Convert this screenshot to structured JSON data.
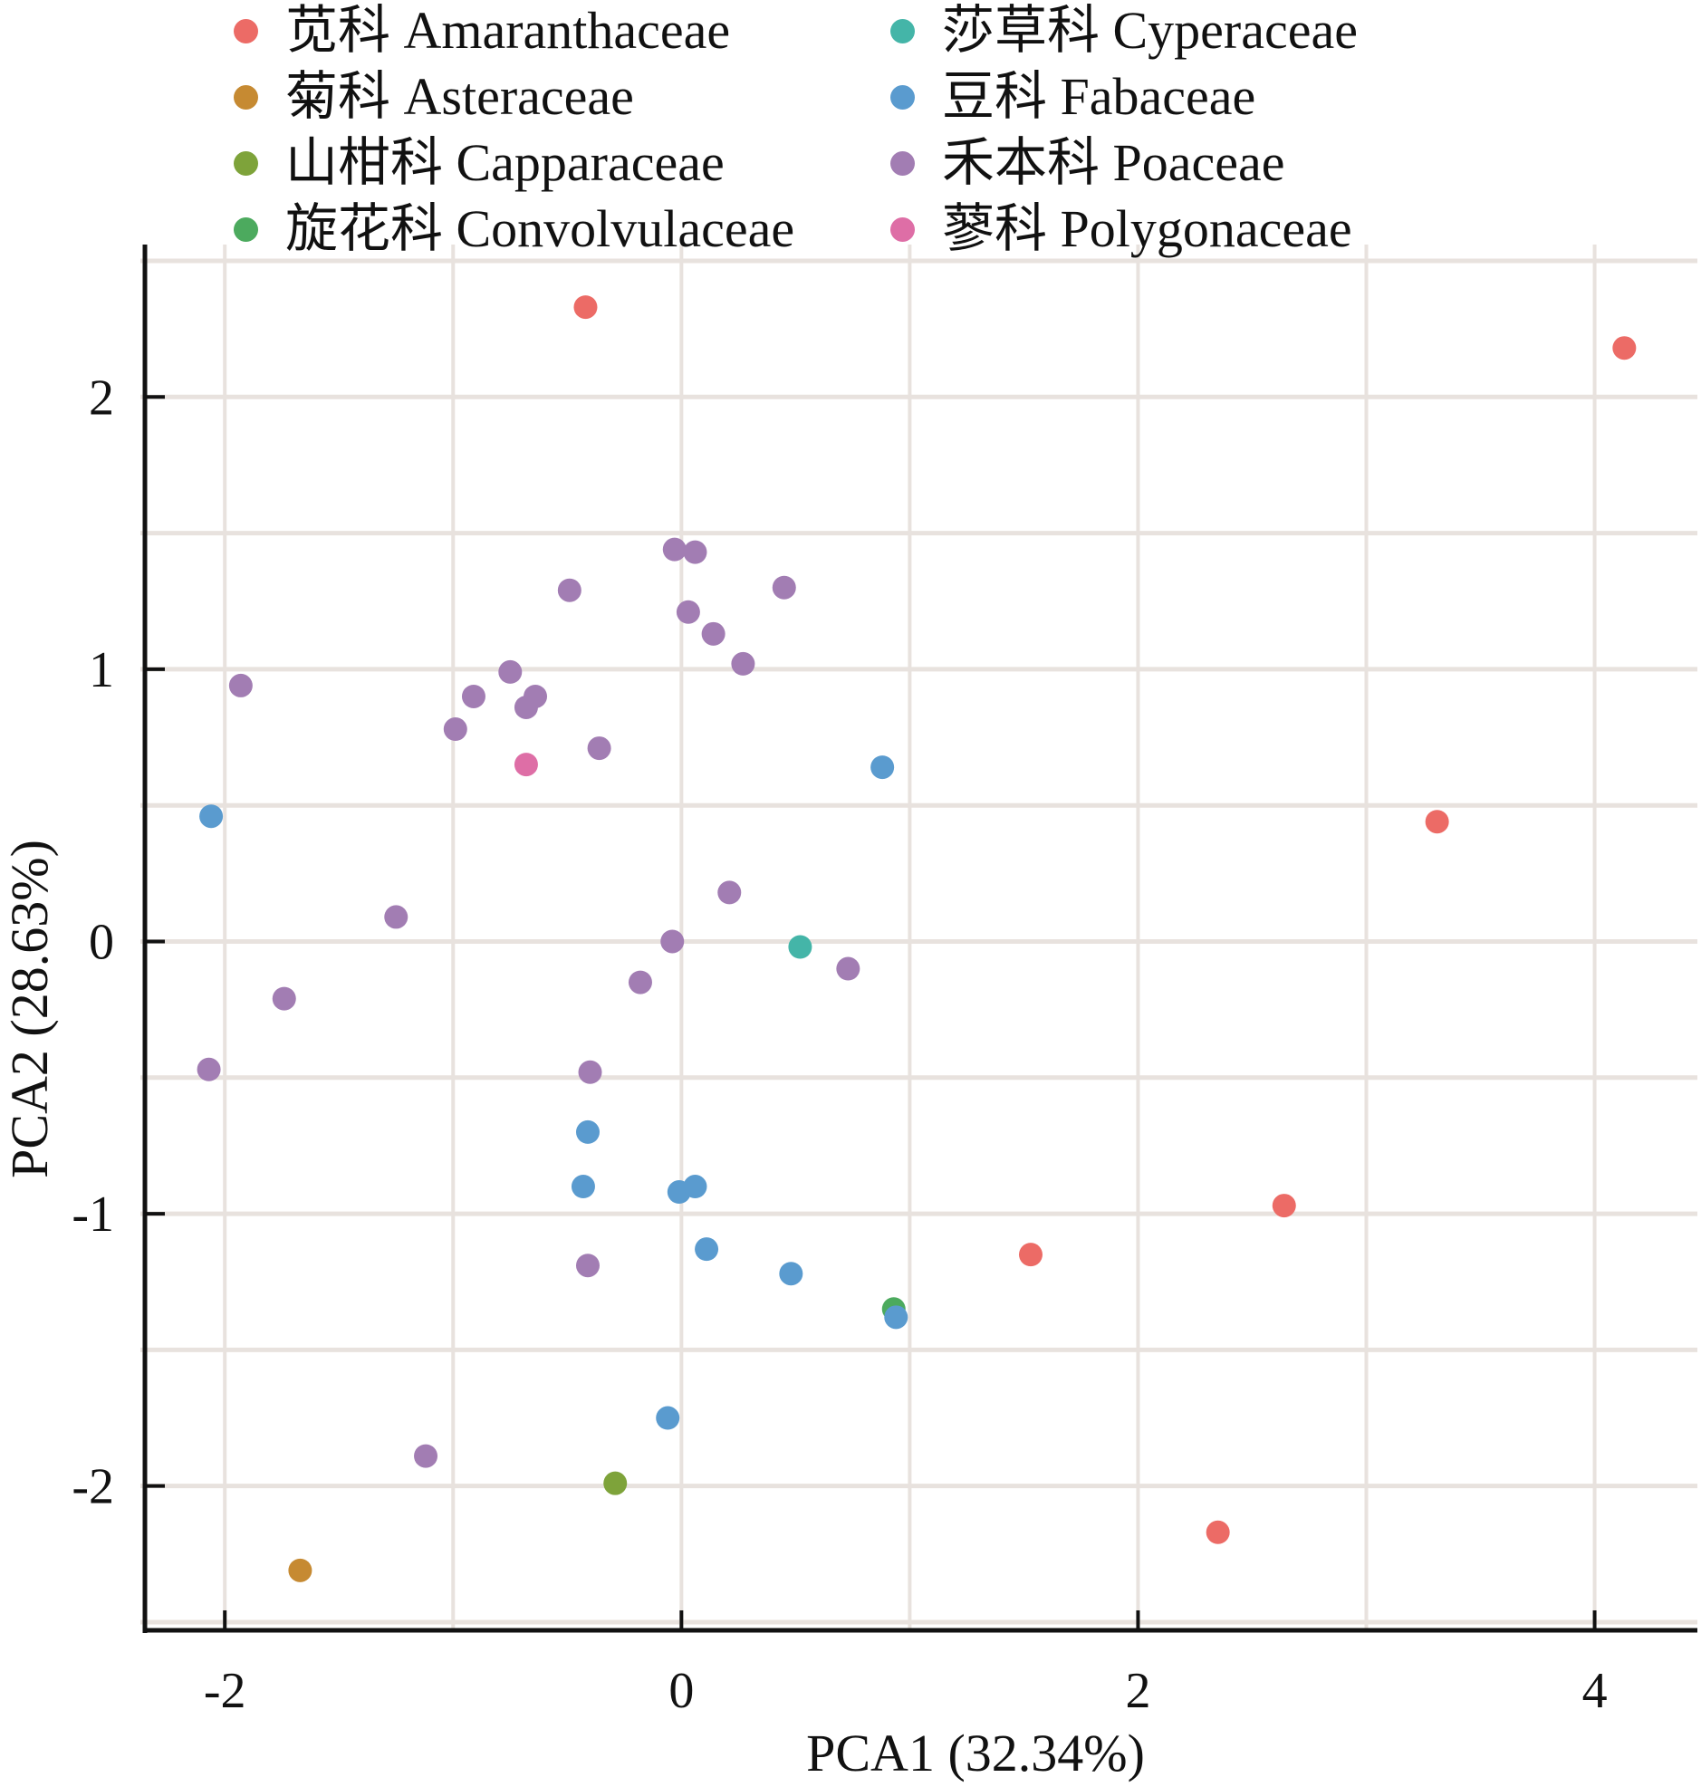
{
  "chart_data": {
    "type": "scatter",
    "title": "",
    "xlabel": "PCA1 (32.34%)",
    "ylabel": "PCA2 (28.63%)",
    "xlim": [
      -2.35,
      4.45
    ],
    "ylim": [
      -2.53,
      2.5
    ],
    "grid": true,
    "legend_position": "top",
    "x_ticks": [
      -2,
      0,
      2,
      4
    ],
    "x_tick_labels": [
      "-2",
      "0",
      "2",
      "4"
    ],
    "y_ticks": [
      2,
      1,
      0,
      -1,
      -2
    ],
    "y_tick_labels": [
      "2",
      "1",
      "0",
      "-1",
      "-2"
    ],
    "series": [
      {
        "name": "苋科 Amaranthaceae",
        "color": "#ec6b66",
        "points": [
          [
            -0.42,
            2.33
          ],
          [
            4.13,
            2.18
          ],
          [
            3.31,
            0.44
          ],
          [
            2.64,
            -0.97
          ],
          [
            1.53,
            -1.15
          ],
          [
            2.35,
            -2.17
          ]
        ]
      },
      {
        "name": "菊科 Asteraceae",
        "color": "#c68a32",
        "points": [
          [
            -1.67,
            -2.31
          ]
        ]
      },
      {
        "name": "山柑科 Capparaceae",
        "color": "#7ea33a",
        "points": [
          [
            -0.29,
            -1.99
          ]
        ]
      },
      {
        "name": "旋花科 Convolvulaceae",
        "color": "#4caa5e",
        "points": [
          [
            0.93,
            -1.35
          ]
        ]
      },
      {
        "name": "莎草科 Cyperaceae",
        "color": "#44b5a8",
        "points": [
          [
            0.52,
            -0.02
          ]
        ]
      },
      {
        "name": "豆科 Fabaceae",
        "color": "#5a9bcf",
        "points": [
          [
            -2.06,
            0.46
          ],
          [
            0.88,
            0.64
          ],
          [
            -0.41,
            -0.7
          ],
          [
            -0.43,
            -0.9
          ],
          [
            -0.01,
            -0.92
          ],
          [
            0.06,
            -0.9
          ],
          [
            0.11,
            -1.13
          ],
          [
            0.48,
            -1.22
          ],
          [
            0.94,
            -1.38
          ],
          [
            -0.06,
            -1.75
          ]
        ]
      },
      {
        "name": "禾本科 Poaceae",
        "color": "#a27db3",
        "points": [
          [
            -0.03,
            1.44
          ],
          [
            0.06,
            1.43
          ],
          [
            -0.49,
            1.29
          ],
          [
            0.45,
            1.3
          ],
          [
            0.03,
            1.21
          ],
          [
            0.14,
            1.13
          ],
          [
            0.27,
            1.02
          ],
          [
            -0.75,
            0.99
          ],
          [
            -0.91,
            0.9
          ],
          [
            -0.64,
            0.9
          ],
          [
            -0.68,
            0.86
          ],
          [
            -0.99,
            0.78
          ],
          [
            -0.36,
            0.71
          ],
          [
            -1.93,
            0.94
          ],
          [
            -1.25,
            0.09
          ],
          [
            0.21,
            0.18
          ],
          [
            -0.04,
            0.0
          ],
          [
            0.73,
            -0.1
          ],
          [
            -0.18,
            -0.15
          ],
          [
            -1.74,
            -0.21
          ],
          [
            -2.07,
            -0.47
          ],
          [
            -0.4,
            -0.48
          ],
          [
            -0.41,
            -1.19
          ],
          [
            -1.12,
            -1.89
          ]
        ]
      },
      {
        "name": "蓼科 Polygonaceae",
        "color": "#de6ea6",
        "points": [
          [
            -0.68,
            0.65
          ]
        ]
      }
    ]
  },
  "colors": {
    "grid": "#e8e2de",
    "axis": "#111111"
  }
}
